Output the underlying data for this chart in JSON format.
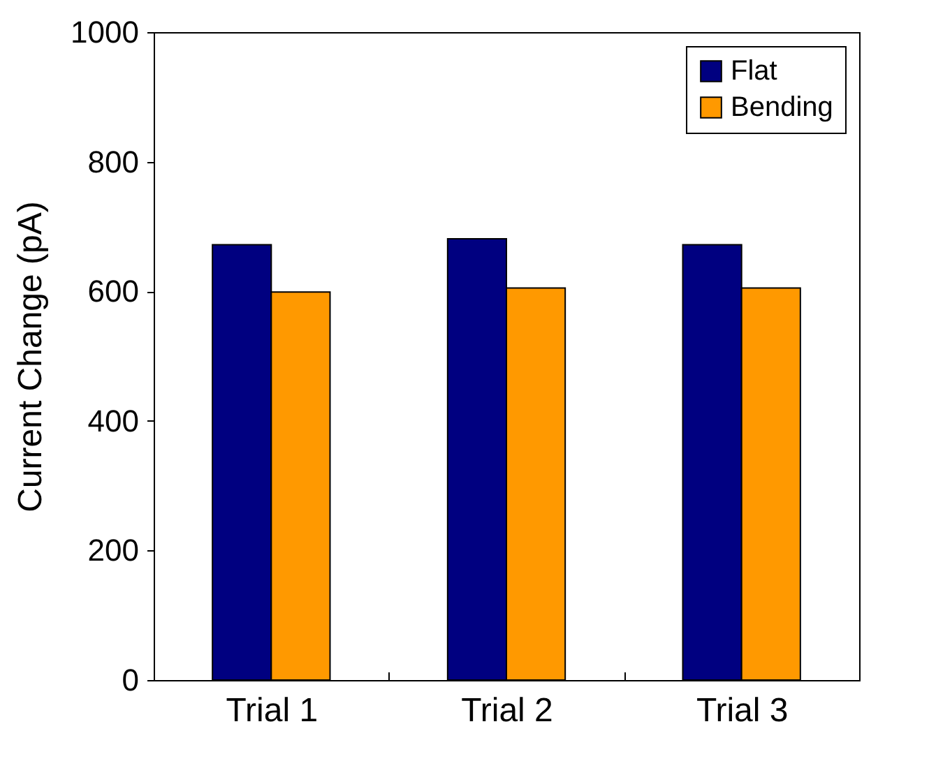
{
  "chart_data": {
    "type": "bar",
    "ylabel": "Current Change (pA)",
    "categories": [
      "Trial 1",
      "Trial 2",
      "Trial 3"
    ],
    "series": [
      {
        "name": "Flat",
        "color": "#000080",
        "values": [
          672,
          681,
          672
        ]
      },
      {
        "name": "Bending",
        "color": "#ff9900",
        "values": [
          599,
          605,
          605
        ]
      }
    ],
    "ylim": [
      0,
      1000
    ],
    "yticks": [
      0,
      200,
      400,
      600,
      800,
      1000
    ],
    "grid": false,
    "legend": "top right"
  }
}
